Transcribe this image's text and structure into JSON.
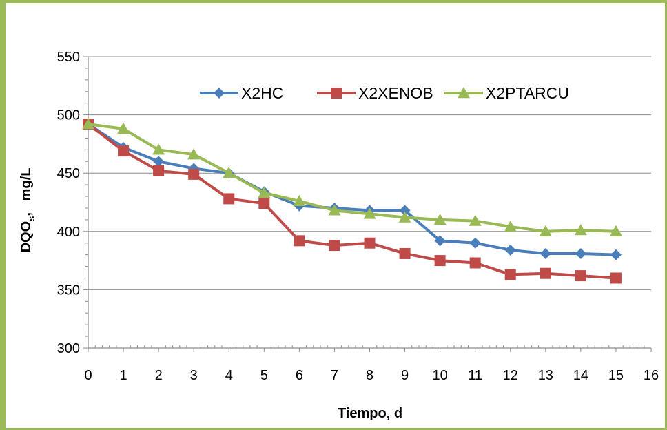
{
  "chart_data": {
    "type": "line",
    "xlabel": "Tiempo, d",
    "ylabel_main": "DQO",
    "ylabel_sub": "s",
    "ylabel_rest": ",   mg/L",
    "xlim": [
      0,
      16
    ],
    "ylim": [
      300,
      550
    ],
    "x_ticks": [
      0,
      1,
      2,
      3,
      4,
      5,
      6,
      7,
      8,
      9,
      10,
      11,
      12,
      13,
      14,
      15,
      16
    ],
    "y_ticks": [
      300,
      350,
      400,
      450,
      500,
      550
    ],
    "grid": "horizontal",
    "legend_position": "top",
    "x": [
      0,
      1,
      2,
      3,
      4,
      5,
      6,
      7,
      8,
      9,
      10,
      11,
      12,
      13,
      14,
      15
    ],
    "series": [
      {
        "name": "X2HC",
        "color": "#4a7ebb",
        "marker": "diamond",
        "values": [
          492,
          472,
          460,
          454,
          450,
          434,
          422,
          420,
          418,
          418,
          392,
          390,
          384,
          381,
          381,
          380
        ]
      },
      {
        "name": "X2XENOB",
        "color": "#be4b48",
        "marker": "square",
        "values": [
          492,
          469,
          452,
          449,
          428,
          424,
          392,
          388,
          390,
          381,
          375,
          373,
          363,
          364,
          362,
          360
        ]
      },
      {
        "name": "X2PTARCU",
        "color": "#98b954",
        "marker": "triangle",
        "values": [
          492,
          488,
          470,
          466,
          450,
          433,
          426,
          418,
          415,
          412,
          410,
          409,
          404,
          400,
          401,
          400
        ]
      }
    ]
  }
}
